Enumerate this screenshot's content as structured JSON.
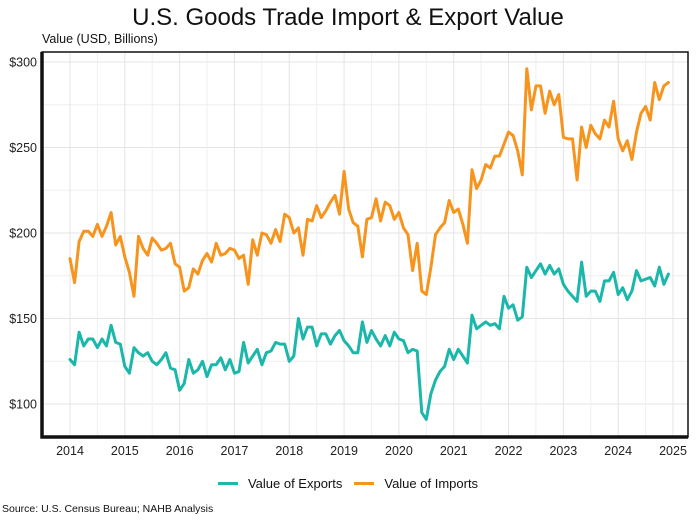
{
  "chart_data": {
    "type": "line",
    "title": "U.S. Goods Trade Import & Export Value",
    "ylabel": "Value (USD, Billions)",
    "xlabel": "",
    "ylim": [
      80,
      305
    ],
    "xlim": [
      2013.5,
      2025.3
    ],
    "y_ticks": [
      100,
      150,
      200,
      250,
      300
    ],
    "y_tick_labels": [
      "$100",
      "$150",
      "$200",
      "$250",
      "$300"
    ],
    "x_ticks": [
      2014,
      2015,
      2016,
      2017,
      2018,
      2019,
      2020,
      2021,
      2022,
      2023,
      2024,
      2025
    ],
    "x_tick_labels": [
      "2014",
      "2015",
      "2016",
      "2017",
      "2018",
      "2019",
      "2020",
      "2021",
      "2022",
      "2023",
      "2024",
      "2025"
    ],
    "grid": true,
    "legend_position": "bottom-center",
    "x_start": 2014.0,
    "x_step_months": 1,
    "series": [
      {
        "name": "Value of Exports",
        "color": "#1BB7AA",
        "values": [
          126,
          123,
          142,
          134,
          138,
          138,
          133,
          138,
          134,
          146,
          136,
          135,
          122,
          118,
          133,
          130,
          128,
          130,
          125,
          123,
          126,
          130,
          121,
          120,
          108,
          112,
          126,
          118,
          120,
          125,
          116,
          123,
          123,
          127,
          120,
          126,
          118,
          119,
          136,
          124,
          128,
          132,
          123,
          130,
          131,
          136,
          135,
          135,
          125,
          128,
          150,
          138,
          145,
          145,
          134,
          141,
          141,
          135,
          140,
          143,
          137,
          134,
          130,
          130,
          148,
          136,
          143,
          138,
          134,
          140,
          134,
          142,
          138,
          137,
          130,
          132,
          131,
          95,
          91,
          106,
          114,
          119,
          122,
          132,
          126,
          132,
          128,
          124,
          152,
          144,
          146,
          148,
          146,
          147,
          144,
          163,
          156,
          158,
          149,
          151,
          180,
          174,
          178,
          182,
          176,
          181,
          176,
          179,
          170,
          166,
          163,
          160,
          183,
          163,
          166,
          166,
          160,
          172,
          172,
          177,
          164,
          168,
          161,
          166,
          178,
          172,
          173,
          174,
          169,
          180,
          170,
          176
        ]
      },
      {
        "name": "Value of Imports",
        "color": "#F7941D",
        "values": [
          185,
          171,
          195,
          201,
          201,
          198,
          205,
          198,
          204,
          212,
          193,
          198,
          186,
          177,
          163,
          198,
          191,
          187,
          197,
          194,
          190,
          191,
          194,
          182,
          180,
          166,
          168,
          179,
          176,
          184,
          188,
          183,
          194,
          187,
          188,
          191,
          190,
          185,
          187,
          170,
          196,
          187,
          200,
          199,
          194,
          202,
          195,
          211,
          209,
          200,
          203,
          187,
          208,
          207,
          216,
          209,
          213,
          218,
          222,
          211,
          236,
          214,
          206,
          204,
          186,
          208,
          209,
          220,
          207,
          218,
          216,
          208,
          212,
          203,
          199,
          178,
          194,
          166,
          164,
          180,
          199,
          203,
          206,
          219,
          212,
          214,
          205,
          194,
          237,
          226,
          231,
          240,
          238,
          245,
          245,
          252,
          259,
          257,
          248,
          234,
          296,
          272,
          286,
          286,
          270,
          283,
          275,
          281,
          256,
          255,
          255,
          231,
          262,
          250,
          263,
          258,
          255,
          266,
          262,
          277,
          255,
          248,
          254,
          243,
          259,
          270,
          274,
          266,
          288,
          278,
          286,
          288
        ]
      }
    ],
    "source": "Source: U.S. Census Bureau; NAHB Analysis"
  }
}
